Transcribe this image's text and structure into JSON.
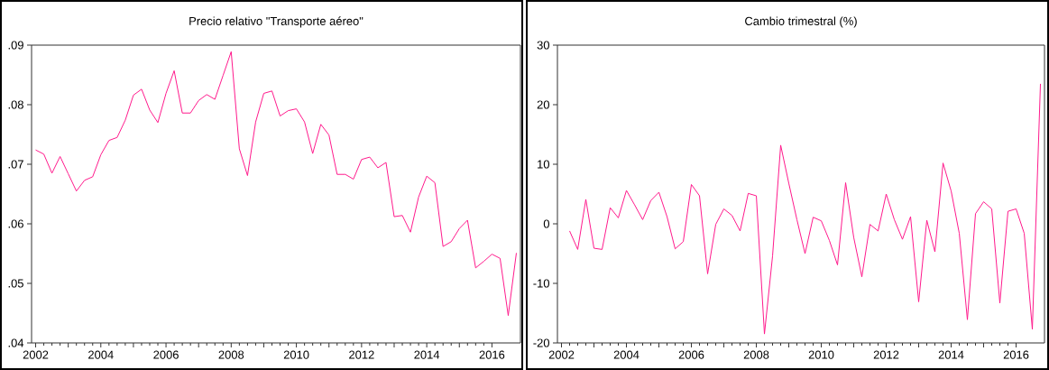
{
  "chart_data": [
    {
      "type": "line",
      "title": "Precio relativo \"Transporte aéreo\"",
      "line_style": "solid",
      "xlim": [
        2001.875,
        2016.875
      ],
      "xticks": [
        {
          "value": 2002,
          "label": "2002"
        },
        {
          "value": 2003,
          "label": null
        },
        {
          "value": 2004,
          "label": "2004"
        },
        {
          "value": 2005,
          "label": null
        },
        {
          "value": 2006,
          "label": "2006"
        },
        {
          "value": 2007,
          "label": null
        },
        {
          "value": 2008,
          "label": "2008"
        },
        {
          "value": 2009,
          "label": null
        },
        {
          "value": 2010,
          "label": "2010"
        },
        {
          "value": 2011,
          "label": null
        },
        {
          "value": 2012,
          "label": "2012"
        },
        {
          "value": 2013,
          "label": null
        },
        {
          "value": 2014,
          "label": "2014"
        },
        {
          "value": 2015,
          "label": null
        },
        {
          "value": 2016,
          "label": "2016"
        }
      ],
      "ylim": [
        0.04,
        0.09
      ],
      "yticks": [
        {
          "value": 0.04,
          "label": ".04"
        },
        {
          "value": 0.05,
          "label": ".05"
        },
        {
          "value": 0.06,
          "label": ".06"
        },
        {
          "value": 0.07,
          "label": ".07"
        },
        {
          "value": 0.08,
          "label": ".08"
        },
        {
          "value": 0.09,
          "label": ".09"
        }
      ],
      "x": [
        2002.0,
        2002.25,
        2002.5,
        2002.75,
        2003.0,
        2003.25,
        2003.5,
        2003.75,
        2004.0,
        2004.25,
        2004.5,
        2004.75,
        2005.0,
        2005.25,
        2005.5,
        2005.75,
        2006.0,
        2006.25,
        2006.5,
        2006.75,
        2007.0,
        2007.25,
        2007.5,
        2007.75,
        2008.0,
        2008.25,
        2008.5,
        2008.75,
        2009.0,
        2009.25,
        2009.5,
        2009.75,
        2010.0,
        2010.25,
        2010.5,
        2010.75,
        2011.0,
        2011.25,
        2011.5,
        2011.75,
        2012.0,
        2012.25,
        2012.5,
        2012.75,
        2013.0,
        2013.25,
        2013.5,
        2013.75,
        2014.0,
        2014.25,
        2014.5,
        2014.75,
        2015.0,
        2015.25,
        2015.5,
        2015.75,
        2016.0,
        2016.25,
        2016.5,
        2016.75
      ],
      "series": [
        {
          "color": "#ff1a8c",
          "values": [
            0.0724,
            0.0717,
            0.0685,
            0.0713,
            0.0684,
            0.0655,
            0.0673,
            0.0679,
            0.0716,
            0.074,
            0.0745,
            0.0774,
            0.0816,
            0.0826,
            0.0791,
            0.077,
            0.0819,
            0.0857,
            0.0786,
            0.0786,
            0.0807,
            0.0817,
            0.0809,
            0.0849,
            0.0889,
            0.0726,
            0.0681,
            0.0771,
            0.0819,
            0.0823,
            0.0781,
            0.079,
            0.0793,
            0.0771,
            0.0718,
            0.0767,
            0.0749,
            0.0683,
            0.0683,
            0.0675,
            0.0708,
            0.0712,
            0.0694,
            0.0703,
            0.0612,
            0.0614,
            0.0586,
            0.0645,
            0.068,
            0.0669,
            0.0562,
            0.057,
            0.0592,
            0.0606,
            0.0526,
            0.0537,
            0.0549,
            0.0542,
            0.0446,
            0.0551
          ]
        }
      ]
    },
    {
      "type": "line",
      "title": "Cambio trimestral (%)",
      "line_style": "solid",
      "xlim": [
        2001.875,
        2016.875
      ],
      "xticks": [
        {
          "value": 2002,
          "label": "2002"
        },
        {
          "value": 2003,
          "label": null
        },
        {
          "value": 2004,
          "label": "2004"
        },
        {
          "value": 2005,
          "label": null
        },
        {
          "value": 2006,
          "label": "2006"
        },
        {
          "value": 2007,
          "label": null
        },
        {
          "value": 2008,
          "label": "2008"
        },
        {
          "value": 2009,
          "label": null
        },
        {
          "value": 2010,
          "label": "2010"
        },
        {
          "value": 2011,
          "label": null
        },
        {
          "value": 2012,
          "label": "2012"
        },
        {
          "value": 2013,
          "label": null
        },
        {
          "value": 2014,
          "label": "2014"
        },
        {
          "value": 2015,
          "label": null
        },
        {
          "value": 2016,
          "label": "2016"
        }
      ],
      "ylim": [
        -20,
        30
      ],
      "yticks": [
        -20,
        -10,
        0,
        10,
        20,
        30
      ],
      "x": [
        2002.25,
        2002.5,
        2002.75,
        2003.0,
        2003.25,
        2003.5,
        2003.75,
        2004.0,
        2004.25,
        2004.5,
        2004.75,
        2005.0,
        2005.25,
        2005.5,
        2005.75,
        2006.0,
        2006.25,
        2006.5,
        2006.75,
        2007.0,
        2007.25,
        2007.5,
        2007.75,
        2008.0,
        2008.25,
        2008.5,
        2008.75,
        2009.0,
        2009.25,
        2009.5,
        2009.75,
        2010.0,
        2010.25,
        2010.5,
        2010.75,
        2011.0,
        2011.25,
        2011.5,
        2011.75,
        2012.0,
        2012.25,
        2012.5,
        2012.75,
        2013.0,
        2013.25,
        2013.5,
        2013.75,
        2014.0,
        2014.25,
        2014.5,
        2014.75,
        2015.0,
        2015.25,
        2015.5,
        2015.75,
        2016.0,
        2016.25,
        2016.5,
        2016.75
      ],
      "series": [
        {
          "color": "#ff1a8c",
          "values": [
            -1.2,
            -4.3,
            4.1,
            -4.1,
            -4.3,
            2.7,
            1.0,
            5.6,
            3.2,
            0.7,
            3.9,
            5.3,
            1.2,
            -4.2,
            -3.0,
            6.6,
            4.7,
            -8.4,
            -0.1,
            2.5,
            1.4,
            -1.2,
            5.1,
            4.7,
            -18.5,
            -5.4,
            13.2,
            6.8,
            0.7,
            -5.0,
            1.1,
            0.5,
            -2.8,
            -6.9,
            6.9,
            -2.3,
            -8.9,
            -0.1,
            -1.2,
            5.0,
            0.7,
            -2.6,
            1.2,
            -13.1,
            0.6,
            -4.7,
            10.2,
            5.5,
            -1.6,
            -16.1,
            1.7,
            3.7,
            2.5,
            -13.3,
            2.1,
            2.5,
            -1.6,
            -17.7,
            23.5
          ]
        }
      ]
    }
  ]
}
